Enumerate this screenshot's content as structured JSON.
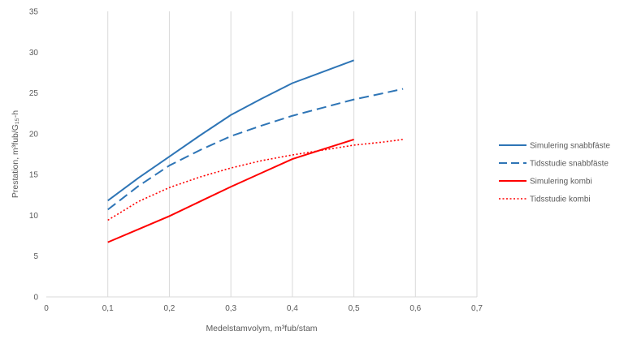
{
  "chart_data": {
    "type": "line",
    "xlabel": "Medelstamvolym, m³fub/stam",
    "ylabel": "Prestation, m³fub/G₁₅-h",
    "xlim": [
      0,
      0.7
    ],
    "ylim": [
      0,
      35
    ],
    "x_ticks": [
      "0",
      "0,1",
      "0,2",
      "0,3",
      "0,4",
      "0,5",
      "0,6",
      "0,7"
    ],
    "y_ticks": [
      "0",
      "5",
      "10",
      "15",
      "20",
      "25",
      "30",
      "35"
    ],
    "grid": "vertical",
    "legend_position": "right",
    "series": [
      {
        "name": "Simulering snabbfäste",
        "color": "#2e75b6",
        "style": "solid",
        "x": [
          0.1,
          0.15,
          0.2,
          0.25,
          0.3,
          0.35,
          0.4,
          0.45,
          0.5
        ],
        "y": [
          11.8,
          14.6,
          17.2,
          19.8,
          22.3,
          24.3,
          26.2,
          27.6,
          29.0
        ]
      },
      {
        "name": "Tidsstudie snabbfäste",
        "color": "#2e75b6",
        "style": "dashed",
        "x": [
          0.1,
          0.15,
          0.2,
          0.25,
          0.3,
          0.35,
          0.4,
          0.45,
          0.5,
          0.55,
          0.58
        ],
        "y": [
          10.7,
          13.6,
          16.1,
          18.0,
          19.7,
          21.0,
          22.2,
          23.2,
          24.2,
          25.0,
          25.5
        ]
      },
      {
        "name": "Simulering kombi",
        "color": "#ff0000",
        "style": "solid",
        "x": [
          0.1,
          0.15,
          0.2,
          0.25,
          0.3,
          0.35,
          0.4,
          0.45,
          0.5
        ],
        "y": [
          6.7,
          8.3,
          9.9,
          11.7,
          13.5,
          15.2,
          16.9,
          18.1,
          19.3
        ]
      },
      {
        "name": "Tidsstudie kombi",
        "color": "#ff0000",
        "style": "dotted",
        "x": [
          0.1,
          0.15,
          0.2,
          0.25,
          0.3,
          0.35,
          0.4,
          0.45,
          0.5,
          0.55,
          0.58
        ],
        "y": [
          9.4,
          11.7,
          13.4,
          14.7,
          15.8,
          16.7,
          17.4,
          18.0,
          18.6,
          19.0,
          19.3
        ]
      }
    ]
  }
}
